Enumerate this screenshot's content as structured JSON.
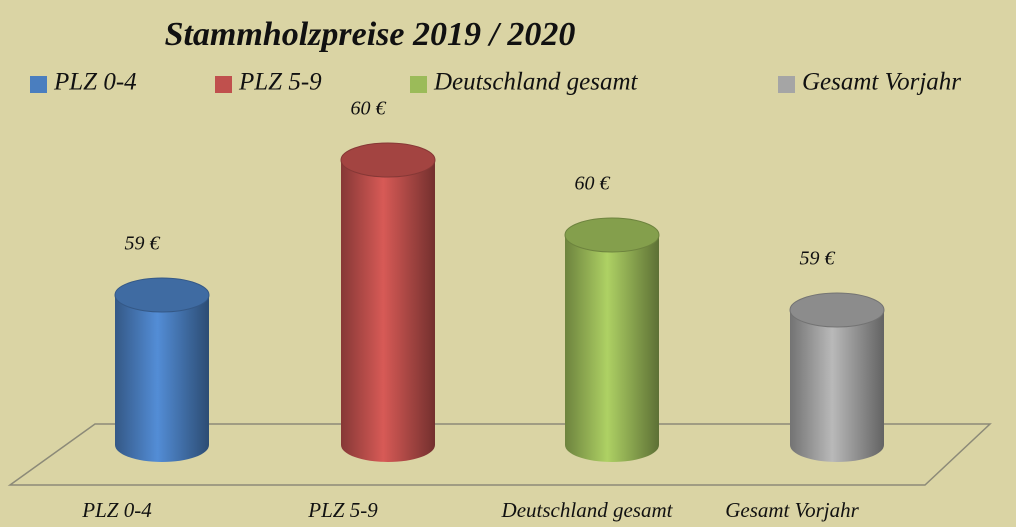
{
  "chart_data": {
    "type": "bar",
    "title": "Stammholzpreise 2019 / 2020",
    "categories": [
      "PLZ 0-4",
      "PLZ 5-9",
      "Deutschland gesamt",
      "Gesamt Vorjahr"
    ],
    "values": [
      59.4,
      60.3,
      59.8,
      59.3
    ],
    "value_labels": [
      "59 €",
      "60 €",
      "60 €",
      "59 €"
    ],
    "colors": [
      "#4a7ebf",
      "#c0504d",
      "#9bbb59",
      "#a5a5a5"
    ],
    "ylim": [
      58.4,
      60.6
    ],
    "legend": "top"
  }
}
